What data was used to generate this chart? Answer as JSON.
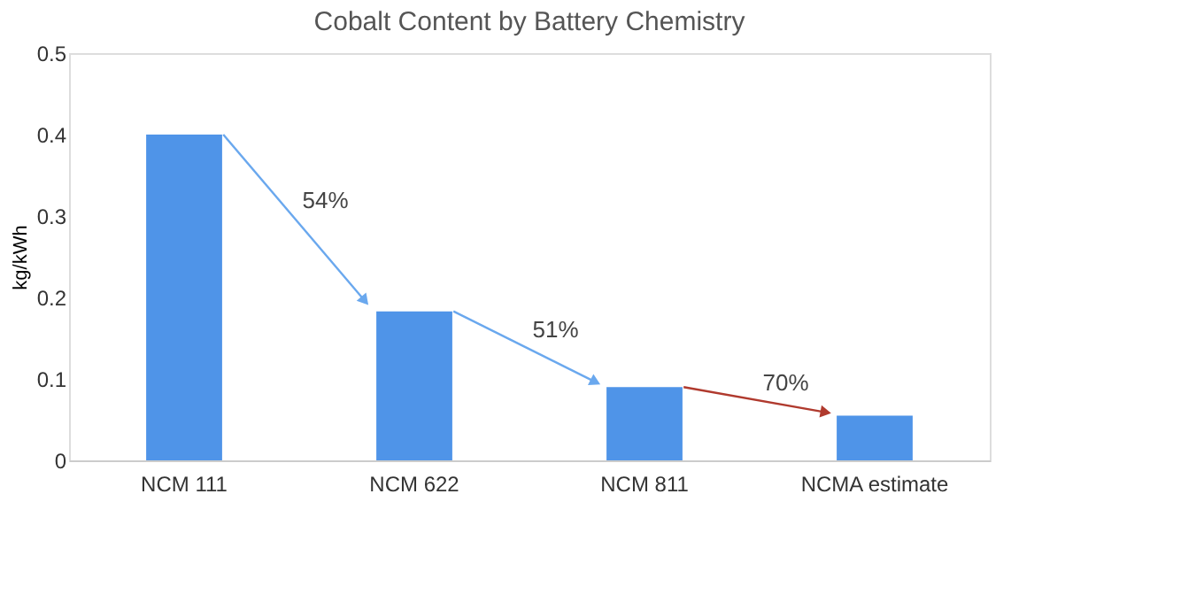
{
  "chart_data": {
    "type": "bar",
    "title": "Cobalt Content by Battery Chemistry",
    "ylabel": "kg/kWh",
    "categories": [
      "NCM 111",
      "NCM 622",
      "NCM 811",
      "NCMA estimate"
    ],
    "values": [
      0.4,
      0.183,
      0.09,
      0.055
    ],
    "color": "#4f94e8",
    "ylim": [
      0,
      0.5
    ],
    "yticks": [
      0,
      0.1,
      0.2,
      0.3,
      0.4,
      0.5
    ],
    "grid": false,
    "annotations": [
      "54%",
      "51%",
      "70%"
    ]
  }
}
